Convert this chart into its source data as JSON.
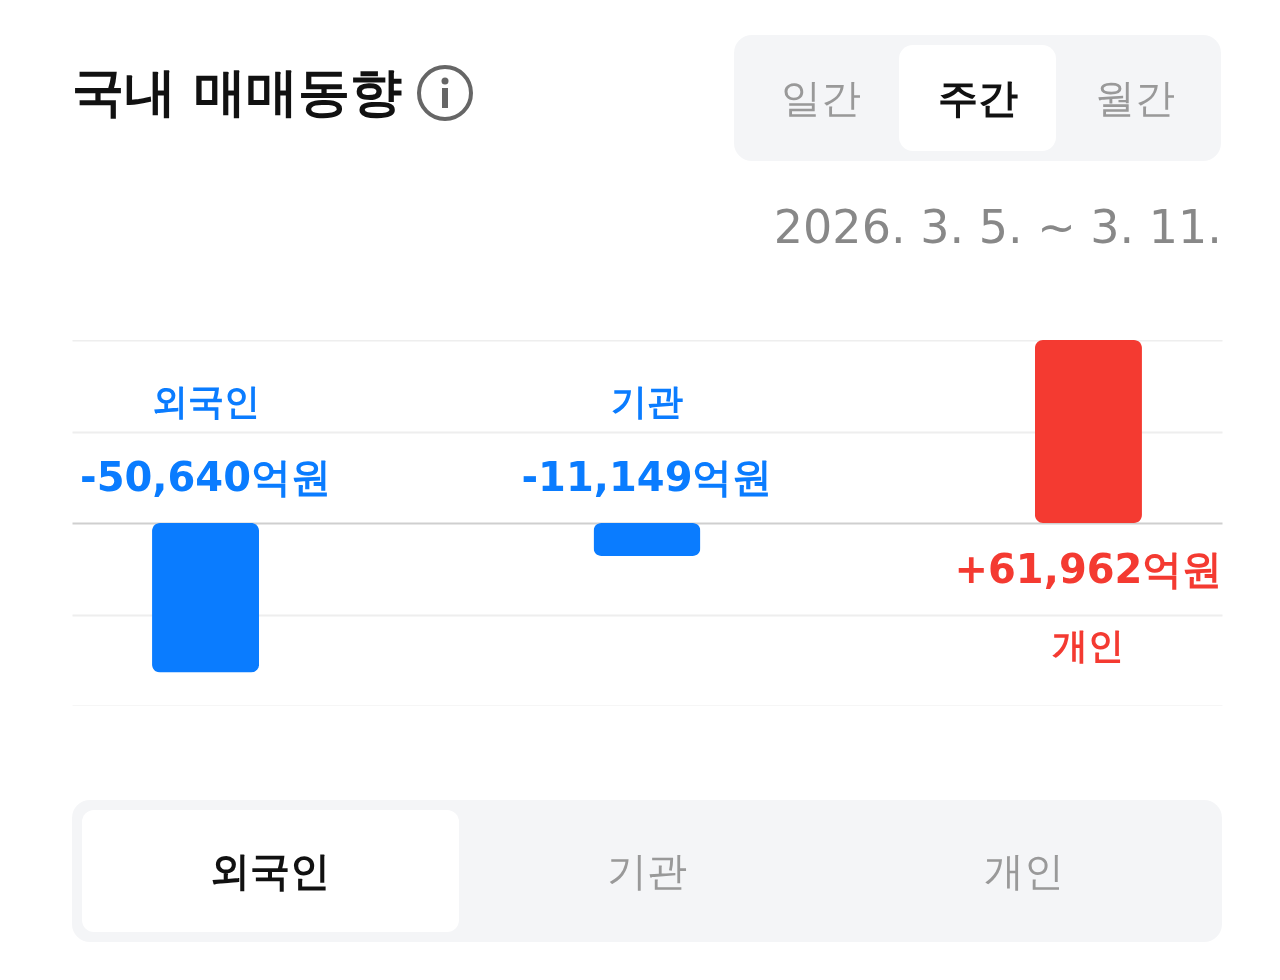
{
  "chart_data": {
    "type": "bar",
    "title": "국내 매매동향",
    "subtitle": "2026. 3. 5. ~ 3. 11.",
    "categories": [
      "외국인",
      "기관",
      "개인"
    ],
    "values": [
      -50640,
      -11149,
      61962
    ],
    "colors": [
      "#0a7cff",
      "#0a7cff",
      "#f43a31"
    ],
    "value_labels": [
      "-50,640억원",
      "-11,149억원",
      "+61,962억원"
    ],
    "ylim": [
      -62000,
      62000
    ],
    "yticks": [
      {
        "value": -62000,
        "label": null
      },
      {
        "value": -31000,
        "label": null
      },
      {
        "value": 0,
        "label": null
      },
      {
        "value": 31000,
        "label": null
      },
      {
        "value": 62000,
        "label": null
      }
    ],
    "grid": "y",
    "tick_labels": false,
    "annotations": [
      "일간",
      "주간",
      "월간",
      "외국인",
      "기관",
      "개인"
    ]
  }
}
